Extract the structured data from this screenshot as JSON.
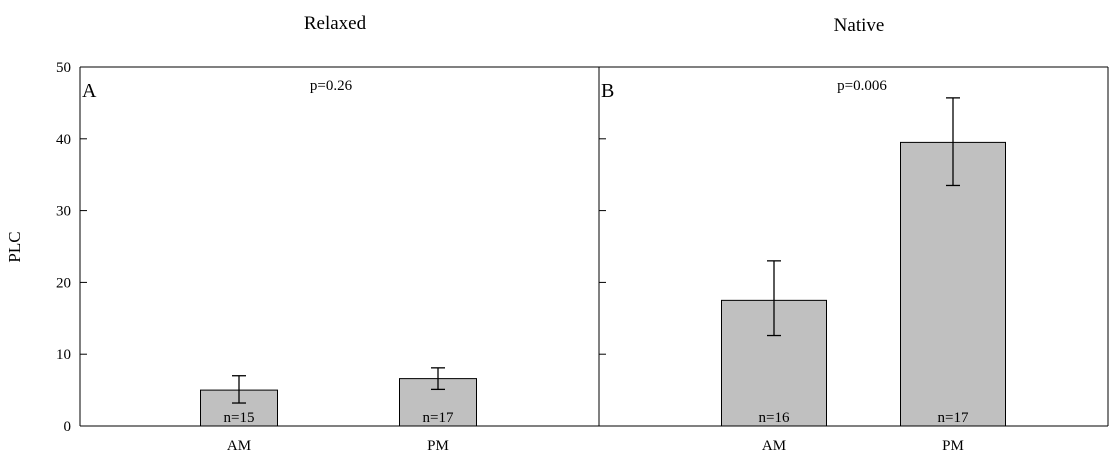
{
  "figure": {
    "ylabel": "PLC"
  },
  "chart_data": [
    {
      "type": "bar",
      "panel_letter": "A",
      "title": "Relaxed",
      "annotation": "p=0.26",
      "categories": [
        "AM",
        "PM"
      ],
      "values": [
        5.0,
        6.6
      ],
      "error_low": [
        3.2,
        5.1
      ],
      "error_high": [
        7.0,
        8.1
      ],
      "n_labels": [
        "n=15",
        "n=17"
      ],
      "ylabel": "PLC",
      "ylim": [
        0,
        50
      ],
      "yticks": [
        "0",
        "10",
        "20",
        "30",
        "40",
        "50"
      ],
      "bar_color": "#c0c0c0"
    },
    {
      "type": "bar",
      "panel_letter": "B",
      "title": "Native",
      "annotation": "p=0.006",
      "categories": [
        "AM",
        "PM"
      ],
      "values": [
        17.5,
        39.5
      ],
      "error_low": [
        12.6,
        33.5
      ],
      "error_high": [
        23.0,
        45.7
      ],
      "n_labels": [
        "n=16",
        "n=17"
      ],
      "ylabel": "",
      "ylim": [
        0,
        50
      ],
      "yticks": [],
      "bar_color": "#c0c0c0"
    }
  ]
}
